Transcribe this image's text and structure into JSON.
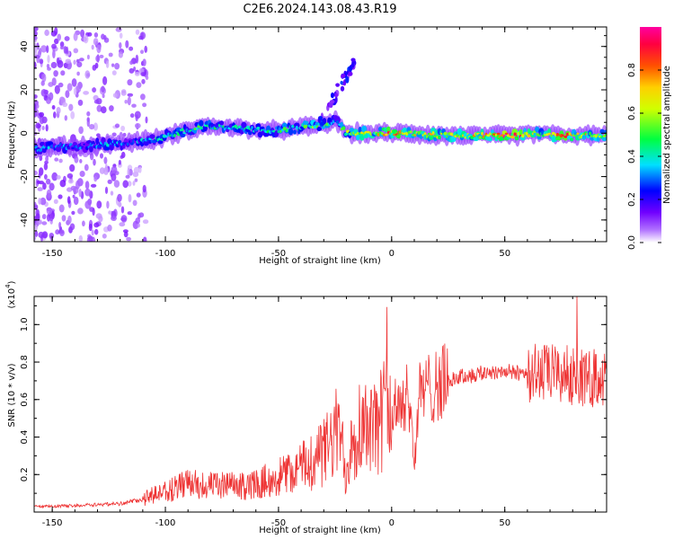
{
  "chart_data": [
    {
      "type": "heatmap",
      "title": "C2E6.2024.143.08.43.R19",
      "xlabel": "Height of straight line (km)",
      "ylabel": "Frequency (Hz)",
      "colorbar_label": "Normalized spectral amplitude",
      "xlim": [
        -158,
        95
      ],
      "ylim": [
        -50,
        49
      ],
      "x_ticks": [
        -150,
        -100,
        -50,
        0,
        50
      ],
      "y_ticks": [
        -40,
        -20,
        0,
        20,
        40
      ],
      "colorbar_range": [
        0,
        1
      ],
      "colorbar_ticks": [
        0.0,
        0.2,
        0.4,
        0.6,
        0.8
      ],
      "colorscale": [
        "#ffffff",
        "#9b30ff",
        "#0000ff",
        "#00ffff",
        "#00ff00",
        "#ffff00",
        "#ff8000",
        "#ff0000",
        "#ff00a0"
      ],
      "ridge": [
        {
          "x": -155,
          "f": -7,
          "a": 0.35
        },
        {
          "x": -145,
          "f": -6,
          "a": 0.32
        },
        {
          "x": -135,
          "f": -6,
          "a": 0.28
        },
        {
          "x": -125,
          "f": -5,
          "a": 0.35
        },
        {
          "x": -115,
          "f": -4,
          "a": 0.3
        },
        {
          "x": -105,
          "f": -3,
          "a": 0.38
        },
        {
          "x": -95,
          "f": 0,
          "a": 0.4
        },
        {
          "x": -85,
          "f": 3,
          "a": 0.45
        },
        {
          "x": -75,
          "f": 3,
          "a": 0.42
        },
        {
          "x": -65,
          "f": 2,
          "a": 0.4
        },
        {
          "x": -55,
          "f": 1,
          "a": 0.42
        },
        {
          "x": -45,
          "f": 2,
          "a": 0.45
        },
        {
          "x": -38,
          "f": 3,
          "a": 0.5
        },
        {
          "x": -30,
          "f": 4,
          "a": 0.5
        },
        {
          "x": -25,
          "f": 6,
          "a": 0.35
        },
        {
          "x": -20,
          "f": 0,
          "a": 0.55
        },
        {
          "x": -10,
          "f": 0,
          "a": 0.6
        },
        {
          "x": 0,
          "f": 0,
          "a": 0.75
        },
        {
          "x": 10,
          "f": 0,
          "a": 0.7
        },
        {
          "x": 20,
          "f": -1,
          "a": 0.65
        },
        {
          "x": 30,
          "f": -1,
          "a": 0.6
        },
        {
          "x": 40,
          "f": -1,
          "a": 0.7
        },
        {
          "x": 50,
          "f": -1,
          "a": 0.85
        },
        {
          "x": 55,
          "f": -1,
          "a": 0.9
        },
        {
          "x": 65,
          "f": 0,
          "a": 0.6
        },
        {
          "x": 75,
          "f": -1,
          "a": 0.8
        },
        {
          "x": 85,
          "f": -1,
          "a": 0.7
        },
        {
          "x": 95,
          "f": -1,
          "a": 0.5
        }
      ]
    },
    {
      "type": "line",
      "xlabel": "Height of straight line (km)",
      "ylabel": "SNR (10 * v/v)",
      "y_multiplier_label": "(x10",
      "y_multiplier_exp": "4",
      "xlim": [
        -158,
        95
      ],
      "ylim": [
        0,
        11500
      ],
      "x_ticks": [
        -150,
        -100,
        -50,
        0,
        50
      ],
      "y_ticks": [
        2000,
        4000,
        6000,
        8000,
        10000
      ],
      "y_tick_labels": [
        "0.2",
        "0.4",
        "0.6",
        "0.8",
        "1.0"
      ],
      "line_color": "#ee3333",
      "series": [
        {
          "x": [
            -158,
            -150,
            -140,
            -130,
            -120,
            -115,
            -110,
            -105,
            -100,
            -95,
            -90,
            -85,
            -80,
            -75,
            -70,
            -65,
            -60,
            -55,
            -50,
            -45,
            -40,
            -35,
            -30,
            -27,
            -25,
            -22,
            -20,
            -18,
            -15,
            -12,
            -10,
            -8,
            -5,
            -2,
            0,
            3,
            6,
            8,
            10,
            12,
            15,
            20,
            25,
            30,
            35,
            40,
            45,
            50,
            55,
            60,
            65,
            70,
            75,
            80,
            85,
            88,
            90,
            95
          ],
          "y": [
            300,
            300,
            350,
            400,
            450,
            550,
            700,
            900,
            1100,
            1300,
            1500,
            1500,
            1400,
            1400,
            1400,
            1350,
            1500,
            1700,
            1900,
            2100,
            2400,
            2800,
            3200,
            3600,
            4200,
            3800,
            1800,
            4000,
            4500,
            4800,
            5000,
            4000,
            5000,
            5500,
            5000,
            6000,
            6100,
            6000,
            2500,
            6200,
            6500,
            6800,
            7000,
            7200,
            7300,
            7400,
            7500,
            7500,
            7400,
            7500,
            7400,
            7400,
            7300,
            7300,
            7200,
            7000,
            7400,
            7000
          ]
        }
      ]
    }
  ]
}
